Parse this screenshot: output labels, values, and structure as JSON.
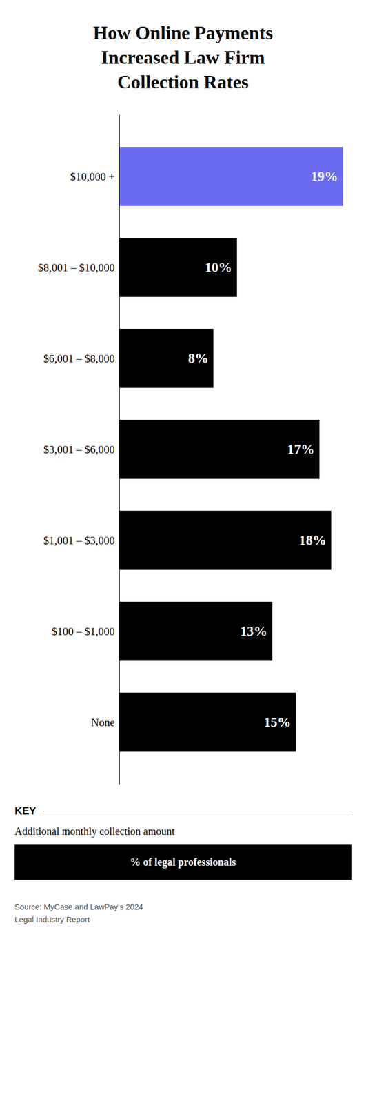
{
  "chart_data": {
    "type": "bar",
    "orientation": "horizontal",
    "title": "How Online Payments\nIncreased Law Firm\nCollection Rates",
    "categories": [
      "$10,000 +",
      "$8,001 – $10,000",
      "$6,001 – $8,000",
      "$3,001 – $6,000",
      "$1,001 – $3,000",
      "$100 – $1,000",
      "None"
    ],
    "values": [
      19,
      10,
      8,
      17,
      18,
      13,
      15
    ],
    "value_labels": [
      "19%",
      "10%",
      "8%",
      "17%",
      "18%",
      "13%",
      "15%"
    ],
    "colors": [
      "#6B6BF0",
      "#000000",
      "#000000",
      "#000000",
      "#000000",
      "#000000",
      "#000000"
    ],
    "xlim": [
      0,
      19
    ],
    "xlabel": "% of legal professionals",
    "ylabel": "Additional monthly collection amount",
    "annotations": [
      "KEY",
      "Source: MyCase and LawPay’s 2024\nLegal Industry Report"
    ],
    "data_labels": true,
    "tick_labels": "y",
    "grid": false
  }
}
